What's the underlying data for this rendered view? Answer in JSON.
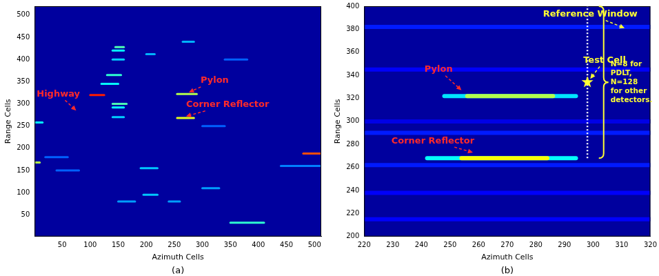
{
  "chart_data": [
    {
      "type": "heatmap",
      "panel": "(a)",
      "x_label": "Azimuth Cells",
      "y_label": "Range Cells",
      "xlim": [
        1,
        512
      ],
      "ylim": [
        1,
        520
      ],
      "xticks": [
        50,
        100,
        150,
        200,
        250,
        300,
        350,
        400,
        450,
        500
      ],
      "yticks": [
        50,
        100,
        150,
        200,
        250,
        300,
        350,
        400,
        450,
        500
      ],
      "streaks": [
        {
          "x": [
            40,
            80
          ],
          "y": 150,
          "value": 0.22
        },
        {
          "x": [
            20,
            60
          ],
          "y": 180,
          "value": 0.22
        },
        {
          "x": [
            440,
            510
          ],
          "y": 160,
          "value": 0.25
        },
        {
          "x": [
            300,
            340
          ],
          "y": 250,
          "value": 0.22
        },
        {
          "x": [
            340,
            380
          ],
          "y": 400,
          "value": 0.22
        },
        {
          "x": [
            150,
            180
          ],
          "y": 80,
          "value": 0.28
        },
        {
          "x": [
            240,
            260
          ],
          "y": 80,
          "value": 0.28
        },
        {
          "x": [
            300,
            330
          ],
          "y": 110,
          "value": 0.28
        },
        {
          "x": [
            195,
            220
          ],
          "y": 95,
          "value": 0.32
        },
        {
          "x": [
            190,
            220
          ],
          "y": 155,
          "value": 0.32
        },
        {
          "x": [
            200,
            215
          ],
          "y": 412,
          "value": 0.3
        },
        {
          "x": [
            265,
            285
          ],
          "y": 440,
          "value": 0.3
        },
        {
          "x": [
            140,
            160
          ],
          "y": 270,
          "value": 0.33
        },
        {
          "x": [
            140,
            160
          ],
          "y": 400,
          "value": 0.33
        },
        {
          "x": [
            140,
            160
          ],
          "y": 420,
          "value": 0.38
        },
        {
          "x": [
            120,
            150
          ],
          "y": 345,
          "value": 0.38
        },
        {
          "x": [
            140,
            160
          ],
          "y": 292,
          "value": 0.38
        },
        {
          "x": [
            0,
            15
          ],
          "y": 258,
          "value": 0.38
        },
        {
          "x": [
            350,
            410
          ],
          "y": 32,
          "value": 0.42
        },
        {
          "x": [
            130,
            155
          ],
          "y": 365,
          "value": 0.42
        },
        {
          "x": [
            145,
            160
          ],
          "y": 428,
          "value": 0.45
        },
        {
          "x": [
            140,
            165
          ],
          "y": 300,
          "value": 0.45
        },
        {
          "x": [
            0,
            10
          ],
          "y": 168,
          "value": 0.55
        },
        {
          "x": [
            255,
            290
          ],
          "y": 322,
          "value": 0.55
        },
        {
          "x": [
            255,
            285
          ],
          "y": 268,
          "value": 0.6
        },
        {
          "x": [
            480,
            510
          ],
          "y": 188,
          "value": 0.8
        },
        {
          "x": [
            100,
            125
          ],
          "y": 320,
          "value": 0.85
        }
      ],
      "annotations": [
        {
          "text": "Highway",
          "text_at": [
            42,
            322
          ],
          "point": [
            75,
            285
          ],
          "color": "#ff2a2a"
        },
        {
          "text": "Pylon",
          "text_at": [
            322,
            352
          ],
          "point": [
            276,
            326
          ],
          "color": "#ff2a2a"
        },
        {
          "text": "Corner Reflector",
          "text_at": [
            345,
            298
          ],
          "point": [
            271,
            272
          ],
          "color": "#ff2a2a"
        }
      ]
    },
    {
      "type": "heatmap",
      "panel": "(b)",
      "x_label": "Azimuth Cells",
      "y_label": "Range Cells",
      "xlim": [
        220,
        320
      ],
      "ylim": [
        200,
        400
      ],
      "xticks": [
        220,
        230,
        240,
        250,
        260,
        270,
        280,
        290,
        300,
        310,
        320
      ],
      "yticks": [
        200,
        220,
        240,
        260,
        280,
        300,
        320,
        340,
        360,
        380,
        400
      ],
      "streaks": [
        {
          "x": [
            220,
            320
          ],
          "y": 300,
          "value": 0.1
        },
        {
          "x": [
            220,
            320
          ],
          "y": 215,
          "value": 0.12
        },
        {
          "x": [
            220,
            320
          ],
          "y": 238,
          "value": 0.12
        },
        {
          "x": [
            220,
            320
          ],
          "y": 345,
          "value": 0.12
        },
        {
          "x": [
            220,
            320
          ],
          "y": 262,
          "value": 0.15
        },
        {
          "x": [
            220,
            320
          ],
          "y": 290,
          "value": 0.15
        },
        {
          "x": [
            220,
            320
          ],
          "y": 382,
          "value": 0.15
        },
        {
          "x": [
            248,
            294
          ],
          "y": 322,
          "value": 0.35
        },
        {
          "x": [
            242,
            294
          ],
          "y": 268,
          "value": 0.38
        },
        {
          "x": [
            256,
            286
          ],
          "y": 322,
          "value": 0.55
        },
        {
          "x": [
            254,
            284
          ],
          "y": 268,
          "value": 0.62
        }
      ],
      "annotations": [
        {
          "text": "Pylon",
          "text_at": [
            246,
            345
          ],
          "point": [
            254,
            327
          ],
          "color": "#ff2a2a"
        },
        {
          "text": "Corner Reflector",
          "text_at": [
            244,
            283
          ],
          "point": [
            258,
            273
          ],
          "color": "#ff2a2a"
        },
        {
          "text": "Reference Window",
          "text_at": [
            299,
            393
          ],
          "point": [
            311,
            381
          ],
          "color": "#ffff33"
        },
        {
          "text": "Test Cell",
          "text_at": [
            304,
            353
          ],
          "point": [
            299,
            337
          ],
          "color": "#ffff33"
        }
      ],
      "reference_window": {
        "x": 298,
        "y": [
          268,
          400
        ],
        "color": "#ffffff"
      },
      "test_cell": {
        "x": 298,
        "y": 334,
        "color": "#ffff33"
      },
      "brace": {
        "x": 302,
        "y": [
          268,
          400
        ],
        "text": "N=8 for PDLT, N=128 for other detectors.",
        "color": "#ffff33"
      }
    }
  ]
}
